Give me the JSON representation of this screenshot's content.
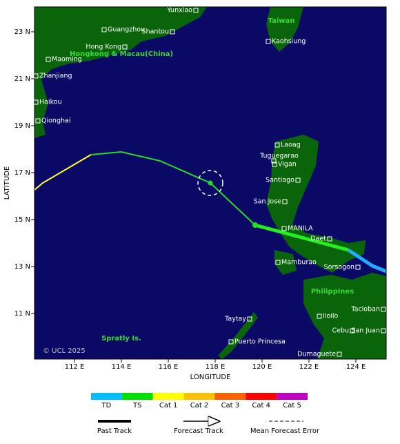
{
  "map": {
    "xaxis_label": "LONGITUDE",
    "yaxis_label": "LATITUDE",
    "xticks": [
      {
        "value": 112,
        "label": "112 E"
      },
      {
        "value": 114,
        "label": "114 E"
      },
      {
        "value": 116,
        "label": "116 E"
      },
      {
        "value": 118,
        "label": "118 E"
      },
      {
        "value": 120,
        "label": "120 E"
      },
      {
        "value": 122,
        "label": "122 E"
      },
      {
        "value": 124,
        "label": "124 E"
      }
    ],
    "yticks": [
      {
        "value": 23,
        "label": "23 N"
      },
      {
        "value": 21,
        "label": "21 N"
      },
      {
        "value": 19,
        "label": "19 N"
      },
      {
        "value": 17,
        "label": "17 N"
      },
      {
        "value": 15,
        "label": "15 N"
      },
      {
        "value": 13,
        "label": "13 N"
      },
      {
        "value": 11,
        "label": "11 N"
      }
    ],
    "places": [
      "Yunxiao",
      "Guangzhou",
      "Shantou",
      "Hong Kong",
      "Kaohsiung",
      "Maoming",
      "Zhanjiang",
      "Haikou",
      "Qionghai",
      "Laoag",
      "Tuguegarao",
      "Vigan",
      "Santiago",
      "San Jose",
      "MANILA",
      "Daet",
      "Mamburao",
      "Sorsogon",
      "Tacloban",
      "Iloilo",
      "Taytay",
      "Cebu",
      "San Juan",
      "Puerto Princesa",
      "Dumaguete"
    ],
    "regions": [
      "Taiwan",
      "Hongkong & Macau(China)",
      "Philippines",
      "Spratly Is."
    ],
    "copyright": "© UCL 2025"
  },
  "legend": {
    "categories": [
      {
        "name": "TD",
        "color": "#00bfff"
      },
      {
        "name": "TS",
        "color": "#00e000"
      },
      {
        "name": "Cat 1",
        "color": "#ffff00"
      },
      {
        "name": "Cat 2",
        "color": "#ffc000"
      },
      {
        "name": "Cat 3",
        "color": "#ff6000"
      },
      {
        "name": "Cat 4",
        "color": "#ff0000"
      },
      {
        "name": "Cat 5",
        "color": "#c000c0"
      }
    ],
    "tracks": [
      "Past Track",
      "Forecast Track",
      "Mean Forecast Error"
    ]
  }
}
